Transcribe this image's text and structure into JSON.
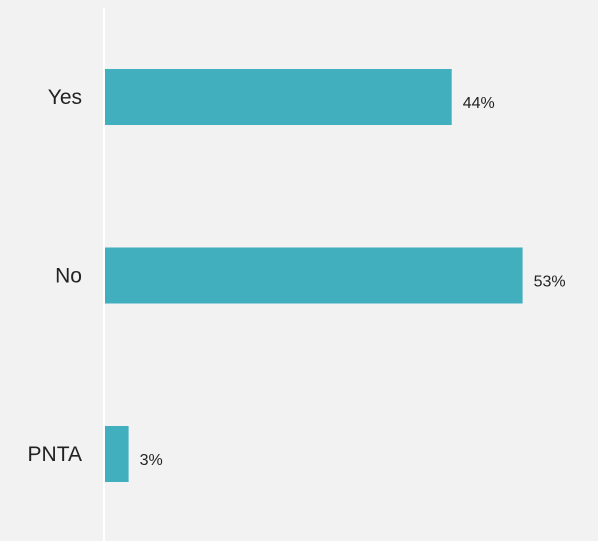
{
  "chart_data": {
    "type": "bar",
    "orientation": "horizontal",
    "categories": [
      "Yes",
      "No",
      "PNTA"
    ],
    "values": [
      44,
      53,
      3
    ],
    "value_labels": [
      "44%",
      "53%",
      "3%"
    ],
    "unit": "%",
    "xlim": [
      0,
      60
    ],
    "grid": false,
    "legend": "none",
    "bar_color": "#42afbf",
    "axis_color": "#ffffff",
    "title": "",
    "xlabel": "",
    "ylabel": ""
  }
}
